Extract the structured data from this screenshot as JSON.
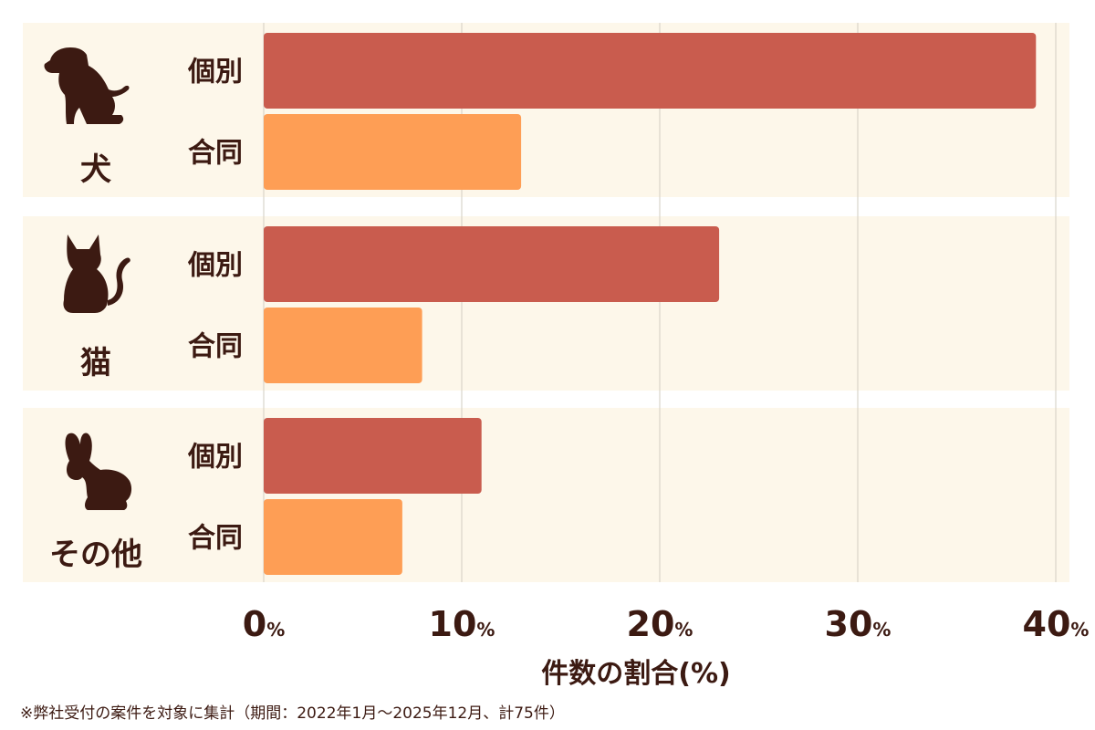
{
  "chart_data": {
    "type": "bar",
    "orientation": "horizontal",
    "xlabel": "件数の割合(%)",
    "xlim": [
      0,
      40
    ],
    "ticks": [
      {
        "num": "0",
        "unit": "%"
      },
      {
        "num": "10",
        "unit": "%"
      },
      {
        "num": "20",
        "unit": "%"
      },
      {
        "num": "30",
        "unit": "%"
      },
      {
        "num": "40",
        "unit": "%"
      }
    ],
    "tick_values": [
      0,
      10,
      20,
      30,
      40
    ],
    "grid": "vertical",
    "groups": [
      {
        "name": "犬",
        "icon": "dog-icon",
        "bars": [
          {
            "label": "個別",
            "value": 39
          },
          {
            "label": "合同",
            "value": 13
          }
        ]
      },
      {
        "name": "猫",
        "icon": "cat-icon",
        "bars": [
          {
            "label": "個別",
            "value": 23
          },
          {
            "label": "合同",
            "value": 8
          }
        ]
      },
      {
        "name": "その他",
        "icon": "rabbit-icon",
        "bars": [
          {
            "label": "個別",
            "value": 11
          },
          {
            "label": "合同",
            "value": 7
          }
        ]
      }
    ]
  },
  "colors": {
    "individual": "#c95c4e",
    "joint": "#fe9e55",
    "panel": "#fdf7ea",
    "text": "#3c1a12",
    "grid": "#d2ccc2"
  },
  "footnote": "※弊社受付の案件を対象に集計（期間：2022年1月〜2025年12月、計75件）"
}
